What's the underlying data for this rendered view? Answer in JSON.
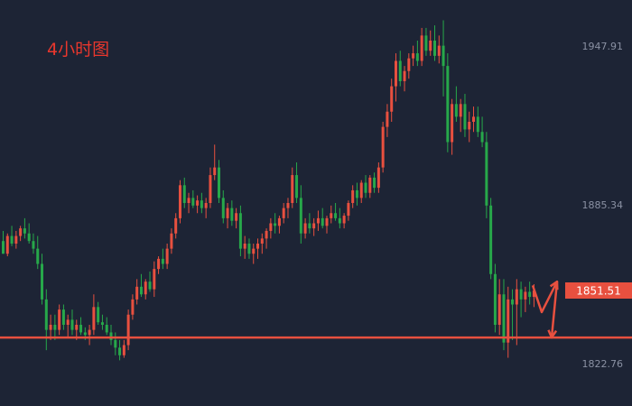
{
  "title": "4小时图",
  "colors": {
    "background": "#1d2435",
    "up": "#e8503f",
    "down": "#27a84a",
    "support_line": "#e8503f",
    "arrow": "#e8503f",
    "price_tag_bg": "#e8503f",
    "title": "#e8372d",
    "tick_text": "#8a91a3"
  },
  "chart_data": {
    "type": "candlestick",
    "title": "4小时图",
    "y_axis_side": "right",
    "ylim": [
      1806,
      1966
    ],
    "y_ticks": [
      {
        "value": 1947.91,
        "label": "1947.91"
      },
      {
        "value": 1885.34,
        "label": "1885.34"
      },
      {
        "value": 1822.76,
        "label": "1822.76"
      }
    ],
    "current_price": {
      "value": 1851.51,
      "label": "1851.51"
    },
    "support_level": 1833.0,
    "projection_arrows": [
      {
        "from": 1853.5,
        "to": 1843
      },
      {
        "from": 1843,
        "to": 1855
      },
      {
        "from": 1855,
        "to": 1833
      }
    ],
    "candles": [
      [
        1871,
        1875,
        1866,
        1866
      ],
      [
        1866,
        1874,
        1865,
        1873
      ],
      [
        1873,
        1877,
        1869,
        1870
      ],
      [
        1870,
        1875,
        1868,
        1873
      ],
      [
        1873,
        1877,
        1871,
        1876
      ],
      [
        1876,
        1880,
        1872,
        1874
      ],
      [
        1874,
        1878,
        1870,
        1871
      ],
      [
        1871,
        1874,
        1866,
        1868
      ],
      [
        1868,
        1873,
        1860,
        1862
      ],
      [
        1862,
        1866,
        1846,
        1848
      ],
      [
        1848,
        1852,
        1828,
        1836
      ],
      [
        1836,
        1842,
        1832,
        1838
      ],
      [
        1838,
        1842,
        1832,
        1836
      ],
      [
        1836,
        1846,
        1834,
        1844
      ],
      [
        1844,
        1846,
        1836,
        1838
      ],
      [
        1838,
        1842,
        1833,
        1840
      ],
      [
        1840,
        1844,
        1834,
        1836
      ],
      [
        1836,
        1840,
        1832,
        1838
      ],
      [
        1838,
        1841,
        1834,
        1835
      ],
      [
        1835,
        1837,
        1832,
        1834
      ],
      [
        1834,
        1838,
        1830,
        1836
      ],
      [
        1836,
        1850,
        1834,
        1845
      ],
      [
        1845,
        1847,
        1838,
        1839
      ],
      [
        1839,
        1842,
        1836,
        1838
      ],
      [
        1838,
        1841,
        1834,
        1835
      ],
      [
        1835,
        1838,
        1830,
        1832
      ],
      [
        1832,
        1835,
        1826,
        1829
      ],
      [
        1829,
        1832,
        1824,
        1826
      ],
      [
        1826,
        1832,
        1825,
        1830
      ],
      [
        1830,
        1844,
        1828,
        1842
      ],
      [
        1842,
        1850,
        1840,
        1848
      ],
      [
        1848,
        1856,
        1846,
        1853
      ],
      [
        1853,
        1858,
        1849,
        1850
      ],
      [
        1850,
        1856,
        1848,
        1855
      ],
      [
        1855,
        1859,
        1851,
        1852
      ],
      [
        1852,
        1863,
        1849,
        1860
      ],
      [
        1860,
        1865,
        1858,
        1864
      ],
      [
        1864,
        1868,
        1860,
        1862
      ],
      [
        1862,
        1870,
        1860,
        1868
      ],
      [
        1868,
        1876,
        1866,
        1874
      ],
      [
        1874,
        1882,
        1872,
        1880
      ],
      [
        1880,
        1895,
        1878,
        1893
      ],
      [
        1893,
        1896,
        1884,
        1886
      ],
      [
        1886,
        1890,
        1882,
        1888
      ],
      [
        1888,
        1891,
        1884,
        1885
      ],
      [
        1885,
        1889,
        1882,
        1887
      ],
      [
        1887,
        1890,
        1882,
        1884
      ],
      [
        1884,
        1888,
        1880,
        1886
      ],
      [
        1886,
        1900,
        1884,
        1897
      ],
      [
        1897,
        1909,
        1895,
        1900
      ],
      [
        1900,
        1903,
        1886,
        1888
      ],
      [
        1888,
        1891,
        1878,
        1880
      ],
      [
        1880,
        1886,
        1876,
        1884
      ],
      [
        1884,
        1887,
        1877,
        1879
      ],
      [
        1879,
        1884,
        1876,
        1882
      ],
      [
        1882,
        1885,
        1865,
        1868
      ],
      [
        1868,
        1873,
        1864,
        1870
      ],
      [
        1870,
        1872,
        1864,
        1866
      ],
      [
        1866,
        1870,
        1862,
        1868
      ],
      [
        1868,
        1872,
        1864,
        1870
      ],
      [
        1870,
        1874,
        1866,
        1872
      ],
      [
        1872,
        1876,
        1868,
        1875
      ],
      [
        1875,
        1880,
        1872,
        1878
      ],
      [
        1878,
        1882,
        1874,
        1877
      ],
      [
        1877,
        1881,
        1874,
        1880
      ],
      [
        1880,
        1886,
        1878,
        1884
      ],
      [
        1884,
        1888,
        1880,
        1886
      ],
      [
        1886,
        1900,
        1884,
        1897
      ],
      [
        1897,
        1902,
        1886,
        1888
      ],
      [
        1888,
        1893,
        1870,
        1874
      ],
      [
        1874,
        1880,
        1872,
        1878
      ],
      [
        1878,
        1882,
        1874,
        1876
      ],
      [
        1876,
        1880,
        1873,
        1878
      ],
      [
        1878,
        1883,
        1875,
        1880
      ],
      [
        1880,
        1884,
        1876,
        1877
      ],
      [
        1877,
        1881,
        1874,
        1880
      ],
      [
        1880,
        1885,
        1878,
        1882
      ],
      [
        1882,
        1886,
        1879,
        1880
      ],
      [
        1880,
        1884,
        1876,
        1878
      ],
      [
        1878,
        1882,
        1876,
        1881
      ],
      [
        1881,
        1887,
        1879,
        1886
      ],
      [
        1886,
        1893,
        1884,
        1891
      ],
      [
        1891,
        1894,
        1885,
        1888
      ],
      [
        1888,
        1895,
        1886,
        1894
      ],
      [
        1894,
        1897,
        1888,
        1890
      ],
      [
        1890,
        1897,
        1888,
        1896
      ],
      [
        1896,
        1898,
        1890,
        1892
      ],
      [
        1892,
        1902,
        1890,
        1900
      ],
      [
        1900,
        1918,
        1898,
        1916
      ],
      [
        1916,
        1925,
        1912,
        1922
      ],
      [
        1922,
        1935,
        1918,
        1932
      ],
      [
        1932,
        1945,
        1926,
        1942
      ],
      [
        1942,
        1946,
        1932,
        1934
      ],
      [
        1934,
        1940,
        1930,
        1938
      ],
      [
        1938,
        1945,
        1935,
        1943
      ],
      [
        1943,
        1948,
        1940,
        1945
      ],
      [
        1945,
        1950,
        1940,
        1942
      ],
      [
        1942,
        1955,
        1940,
        1952
      ],
      [
        1952,
        1955,
        1944,
        1946
      ],
      [
        1946,
        1954,
        1944,
        1950
      ],
      [
        1950,
        1956,
        1942,
        1944
      ],
      [
        1944,
        1952,
        1941,
        1948
      ],
      [
        1948,
        1958,
        1928,
        1940
      ],
      [
        1940,
        1945,
        1906,
        1910
      ],
      [
        1910,
        1927,
        1905,
        1925
      ],
      [
        1925,
        1932,
        1918,
        1920
      ],
      [
        1920,
        1927,
        1914,
        1925
      ],
      [
        1925,
        1929,
        1912,
        1915
      ],
      [
        1915,
        1922,
        1910,
        1918
      ],
      [
        1918,
        1924,
        1914,
        1920
      ],
      [
        1920,
        1924,
        1912,
        1914
      ],
      [
        1914,
        1920,
        1908,
        1910
      ],
      [
        1910,
        1914,
        1880,
        1885
      ],
      [
        1885,
        1888,
        1856,
        1858
      ],
      [
        1858,
        1862,
        1835,
        1838
      ],
      [
        1838,
        1856,
        1834,
        1850
      ],
      [
        1850,
        1856,
        1828,
        1831
      ],
      [
        1831,
        1853,
        1825,
        1848
      ],
      [
        1848,
        1852,
        1832,
        1846
      ],
      [
        1846,
        1856,
        1830,
        1852
      ],
      [
        1852,
        1855,
        1841,
        1848
      ],
      [
        1848,
        1853,
        1843,
        1851
      ],
      [
        1851,
        1855,
        1846,
        1849
      ],
      [
        1849,
        1854,
        1845,
        1851.5
      ]
    ]
  }
}
